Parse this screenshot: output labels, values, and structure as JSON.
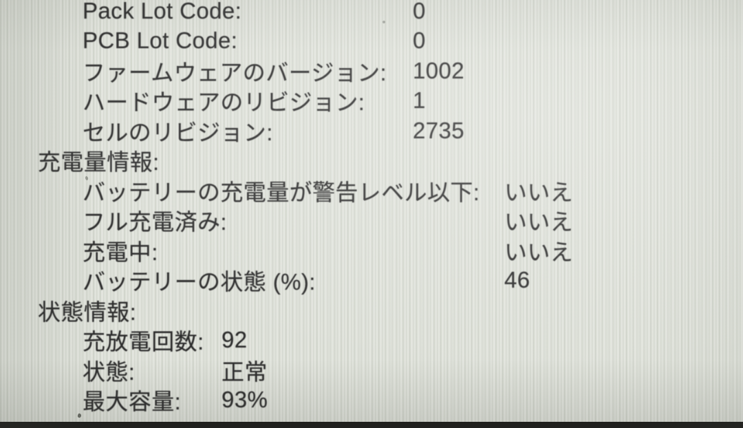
{
  "photo": {
    "description": "macOS system information battery report (Japanese), photographed screen",
    "background_color": "#dee1d9",
    "text_color": "#2d2d2d",
    "bottom_bar_color": "#1d1d1b"
  },
  "sections": [
    {
      "name": "device-info",
      "header": null,
      "items": [
        {
          "label": "Pack Lot Code:",
          "value": "0"
        },
        {
          "label": "PCB Lot Code:",
          "value": "0"
        },
        {
          "label": "ファームウェアのバージョン:",
          "value": "1002"
        },
        {
          "label": "ハードウェアのリビジョン:",
          "value": "1"
        },
        {
          "label": "セルのリビジョン:",
          "value": "2735"
        }
      ]
    },
    {
      "name": "charge-info",
      "header": "充電量情報:",
      "items": [
        {
          "label": "バッテリーの充電量が警告レベル以下:",
          "value": "いいえ"
        },
        {
          "label": "フル充電済み:",
          "value": "いいえ"
        },
        {
          "label": "充電中:",
          "value": "いいえ"
        },
        {
          "label": "バッテリーの状態 (%):",
          "value": "46"
        }
      ]
    },
    {
      "name": "status-info",
      "header": "状態情報:",
      "items": [
        {
          "label": "充放電回数:",
          "value": "92"
        },
        {
          "label": "状態:",
          "value": "正常"
        },
        {
          "label": "最大容量:",
          "value": "93%"
        }
      ]
    }
  ]
}
